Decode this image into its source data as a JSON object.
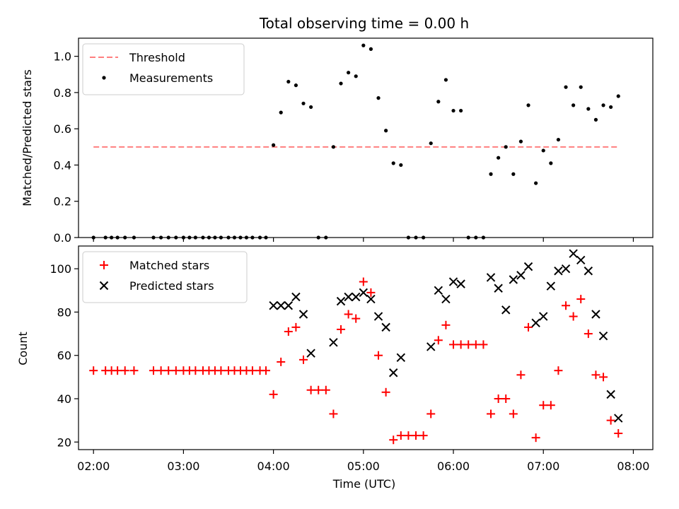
{
  "chart_data": {
    "title": "Total observing time = 0.00 h",
    "xlabel": "Time (UTC)",
    "x_ticks": [
      "02:00",
      "03:00",
      "04:00",
      "05:00",
      "06:00",
      "07:00",
      "08:00"
    ],
    "xlim_minutes_after_midnight": [
      110,
      493
    ],
    "panels": [
      {
        "type": "scatter",
        "ylabel": "Matched/Predicted stars",
        "ylim": [
          0,
          1.1
        ],
        "yticks": [
          0.0,
          0.2,
          0.4,
          0.6,
          0.8,
          1.0
        ],
        "legend_position": "upper-left",
        "threshold": {
          "name": "Threshold",
          "value": 0.5,
          "x_range": [
            "02:00",
            "07:50"
          ],
          "color": "#ff7f7f"
        },
        "series": [
          {
            "name": "Measurements",
            "color": "#000000",
            "marker": "dot",
            "points": [
              [
                "02:00",
                0.0
              ],
              [
                "02:08",
                0.0
              ],
              [
                "02:12",
                0.0
              ],
              [
                "02:16",
                0.0
              ],
              [
                "02:21",
                0.0
              ],
              [
                "02:27",
                0.0
              ],
              [
                "02:40",
                0.0
              ],
              [
                "02:45",
                0.0
              ],
              [
                "02:50",
                0.0
              ],
              [
                "02:55",
                0.0
              ],
              [
                "03:00",
                0.0
              ],
              [
                "03:04",
                0.0
              ],
              [
                "03:08",
                0.0
              ],
              [
                "03:13",
                0.0
              ],
              [
                "03:17",
                0.0
              ],
              [
                "03:21",
                0.0
              ],
              [
                "03:25",
                0.0
              ],
              [
                "03:30",
                0.0
              ],
              [
                "03:34",
                0.0
              ],
              [
                "03:38",
                0.0
              ],
              [
                "03:42",
                0.0
              ],
              [
                "03:46",
                0.0
              ],
              [
                "03:51",
                0.0
              ],
              [
                "03:55",
                0.0
              ],
              [
                "04:00",
                0.51
              ],
              [
                "04:05",
                0.69
              ],
              [
                "04:10",
                0.86
              ],
              [
                "04:15",
                0.84
              ],
              [
                "04:20",
                0.74
              ],
              [
                "04:25",
                0.72
              ],
              [
                "04:30",
                0.0
              ],
              [
                "04:35",
                0.0
              ],
              [
                "04:40",
                0.5
              ],
              [
                "04:45",
                0.85
              ],
              [
                "04:50",
                0.91
              ],
              [
                "04:55",
                0.89
              ],
              [
                "05:00",
                1.06
              ],
              [
                "05:05",
                1.04
              ],
              [
                "05:10",
                0.77
              ],
              [
                "05:15",
                0.59
              ],
              [
                "05:20",
                0.41
              ],
              [
                "05:25",
                0.4
              ],
              [
                "05:30",
                0.0
              ],
              [
                "05:35",
                0.0
              ],
              [
                "05:40",
                0.0
              ],
              [
                "05:45",
                0.52
              ],
              [
                "05:50",
                0.75
              ],
              [
                "05:55",
                0.87
              ],
              [
                "06:00",
                0.7
              ],
              [
                "06:05",
                0.7
              ],
              [
                "06:10",
                0.0
              ],
              [
                "06:15",
                0.0
              ],
              [
                "06:20",
                0.0
              ],
              [
                "06:25",
                0.35
              ],
              [
                "06:30",
                0.44
              ],
              [
                "06:35",
                0.5
              ],
              [
                "06:40",
                0.35
              ],
              [
                "06:45",
                0.53
              ],
              [
                "06:50",
                0.73
              ],
              [
                "06:55",
                0.3
              ],
              [
                "07:00",
                0.48
              ],
              [
                "07:05",
                0.41
              ],
              [
                "07:10",
                0.54
              ],
              [
                "07:15",
                0.83
              ],
              [
                "07:20",
                0.73
              ],
              [
                "07:25",
                0.83
              ],
              [
                "07:30",
                0.71
              ],
              [
                "07:35",
                0.65
              ],
              [
                "07:40",
                0.73
              ],
              [
                "07:45",
                0.72
              ],
              [
                "07:50",
                0.78
              ]
            ]
          }
        ]
      },
      {
        "type": "scatter",
        "ylabel": "Count",
        "ylim": [
          16.5,
          110.5
        ],
        "yticks": [
          20,
          40,
          60,
          80,
          100
        ],
        "legend_position": "upper-left",
        "series": [
          {
            "name": "Matched stars",
            "color": "#ff0000",
            "marker": "plus",
            "points": [
              [
                "02:00",
                53
              ],
              [
                "02:08",
                53
              ],
              [
                "02:12",
                53
              ],
              [
                "02:16",
                53
              ],
              [
                "02:21",
                53
              ],
              [
                "02:27",
                53
              ],
              [
                "02:40",
                53
              ],
              [
                "02:45",
                53
              ],
              [
                "02:50",
                53
              ],
              [
                "02:55",
                53
              ],
              [
                "03:00",
                53
              ],
              [
                "03:04",
                53
              ],
              [
                "03:08",
                53
              ],
              [
                "03:13",
                53
              ],
              [
                "03:17",
                53
              ],
              [
                "03:21",
                53
              ],
              [
                "03:25",
                53
              ],
              [
                "03:30",
                53
              ],
              [
                "03:34",
                53
              ],
              [
                "03:38",
                53
              ],
              [
                "03:42",
                53
              ],
              [
                "03:46",
                53
              ],
              [
                "03:51",
                53
              ],
              [
                "03:55",
                53
              ],
              [
                "04:00",
                42
              ],
              [
                "04:05",
                57
              ],
              [
                "04:10",
                71
              ],
              [
                "04:15",
                73
              ],
              [
                "04:20",
                58
              ],
              [
                "04:25",
                44
              ],
              [
                "04:30",
                44
              ],
              [
                "04:35",
                44
              ],
              [
                "04:40",
                33
              ],
              [
                "04:45",
                72
              ],
              [
                "04:50",
                79
              ],
              [
                "04:55",
                77
              ],
              [
                "05:00",
                94
              ],
              [
                "05:05",
                89
              ],
              [
                "05:10",
                60
              ],
              [
                "05:15",
                43
              ],
              [
                "05:20",
                21
              ],
              [
                "05:25",
                23
              ],
              [
                "05:30",
                23
              ],
              [
                "05:35",
                23
              ],
              [
                "05:40",
                23
              ],
              [
                "05:45",
                33
              ],
              [
                "05:50",
                67
              ],
              [
                "05:55",
                74
              ],
              [
                "06:00",
                65
              ],
              [
                "06:05",
                65
              ],
              [
                "06:10",
                65
              ],
              [
                "06:15",
                65
              ],
              [
                "06:20",
                65
              ],
              [
                "06:25",
                33
              ],
              [
                "06:30",
                40
              ],
              [
                "06:35",
                40
              ],
              [
                "06:40",
                33
              ],
              [
                "06:45",
                51
              ],
              [
                "06:50",
                73
              ],
              [
                "06:55",
                22
              ],
              [
                "07:00",
                37
              ],
              [
                "07:05",
                37
              ],
              [
                "07:10",
                53
              ],
              [
                "07:15",
                83
              ],
              [
                "07:20",
                78
              ],
              [
                "07:25",
                86
              ],
              [
                "07:30",
                70
              ],
              [
                "07:35",
                51
              ],
              [
                "07:40",
                50
              ],
              [
                "07:45",
                30
              ],
              [
                "07:50",
                24
              ]
            ]
          },
          {
            "name": "Predicted stars",
            "color": "#000000",
            "marker": "cross",
            "points": [
              [
                "04:00",
                83
              ],
              [
                "04:05",
                83
              ],
              [
                "04:10",
                83
              ],
              [
                "04:15",
                87
              ],
              [
                "04:20",
                79
              ],
              [
                "04:25",
                61
              ],
              [
                "04:40",
                66
              ],
              [
                "04:45",
                85
              ],
              [
                "04:50",
                87
              ],
              [
                "04:55",
                87
              ],
              [
                "05:00",
                89
              ],
              [
                "05:05",
                86
              ],
              [
                "05:10",
                78
              ],
              [
                "05:15",
                73
              ],
              [
                "05:20",
                52
              ],
              [
                "05:25",
                59
              ],
              [
                "05:45",
                64
              ],
              [
                "05:50",
                90
              ],
              [
                "05:55",
                86
              ],
              [
                "06:00",
                94
              ],
              [
                "06:05",
                93
              ],
              [
                "06:25",
                96
              ],
              [
                "06:30",
                91
              ],
              [
                "06:35",
                81
              ],
              [
                "06:40",
                95
              ],
              [
                "06:45",
                97
              ],
              [
                "06:50",
                101
              ],
              [
                "06:55",
                75
              ],
              [
                "07:00",
                78
              ],
              [
                "07:05",
                92
              ],
              [
                "07:10",
                99
              ],
              [
                "07:15",
                100
              ],
              [
                "07:20",
                107
              ],
              [
                "07:25",
                104
              ],
              [
                "07:30",
                99
              ],
              [
                "07:35",
                79
              ],
              [
                "07:40",
                69
              ],
              [
                "07:45",
                42
              ],
              [
                "07:50",
                31
              ]
            ]
          }
        ]
      }
    ]
  }
}
